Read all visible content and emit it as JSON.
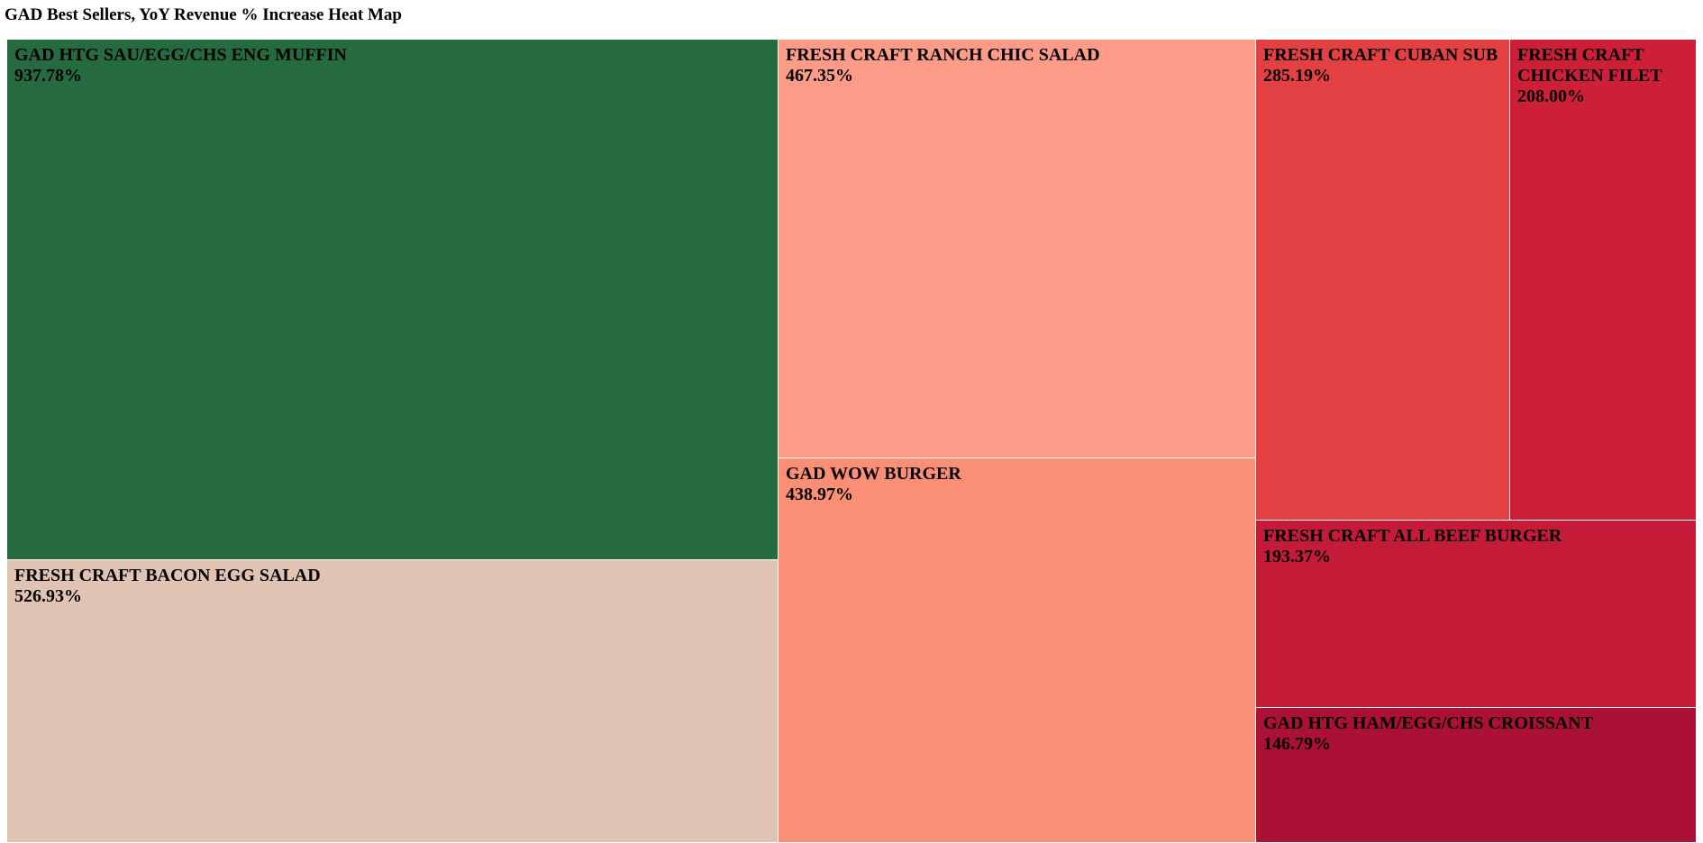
{
  "chart_data": {
    "type": "treemap",
    "title": "GAD Best Sellers, YoY Revenue % Increase Heat Map",
    "value_format": "percent",
    "items": [
      {
        "name": "GAD HTG SAU/EGG/CHS ENG MUFFIN",
        "value": 937.78,
        "label": "937.78%",
        "color": "#256b3f"
      },
      {
        "name": "FRESH CRAFT BACON EGG SALAD",
        "value": 526.93,
        "label": "526.93%",
        "color": "#e1c3b4"
      },
      {
        "name": "FRESH CRAFT RANCH CHIC SALAD",
        "value": 467.35,
        "label": "467.35%",
        "color": "#fb9b88"
      },
      {
        "name": "GAD WOW BURGER",
        "value": 438.97,
        "label": "438.97%",
        "color": "#fb8f76"
      },
      {
        "name": "FRESH CRAFT CUBAN SUB",
        "value": 285.19,
        "label": "285.19%",
        "color": "#e34044"
      },
      {
        "name": "FRESH CRAFT CHICKEN FILET",
        "value": 208.0,
        "label": "208.00%",
        "color": "#cd2038"
      },
      {
        "name": "FRESH CRAFT ALL BEEF BURGER",
        "value": 193.37,
        "label": "193.37%",
        "color": "#c41b38"
      },
      {
        "name": "GAD HTG HAM/EGG/CHS CROISSANT",
        "value": 146.79,
        "label": "146.79%",
        "color": "#ab1135"
      }
    ]
  }
}
